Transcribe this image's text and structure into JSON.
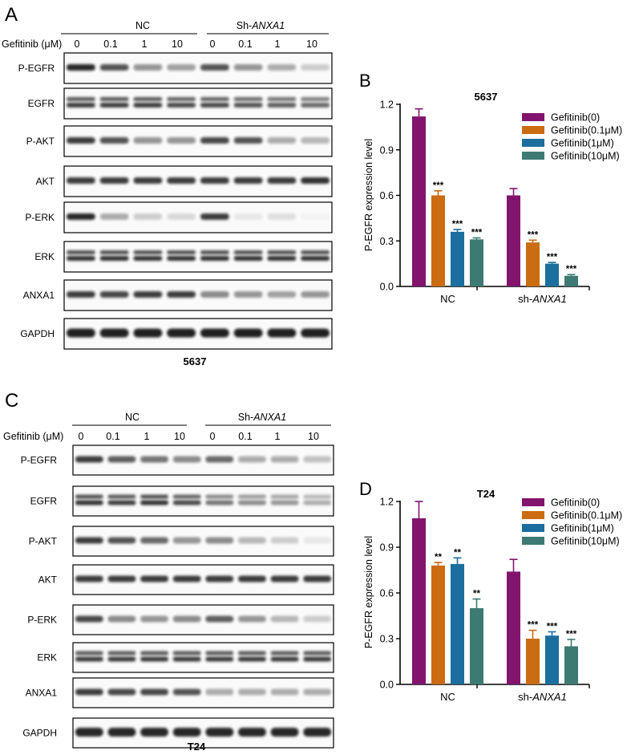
{
  "colors": {
    "gefitinib_0": "#82146e",
    "gefitinib_0_1": "#cb6b12",
    "gefitinib_1": "#1b6e9e",
    "gefitinib_10": "#3d7a73",
    "band": "#1a1a1a"
  },
  "blots": [
    {
      "panel_letter": "A",
      "group_labels": [
        "NC",
        "Sh-ANXA1"
      ],
      "group_label_plain": "NC",
      "group_label_prefix": "Sh-",
      "group_label_italic": "ANXA1",
      "concentration_label": "Gefitinib (μM)",
      "lanes": [
        "0",
        "0.1",
        "1",
        "10",
        "0",
        "0.1",
        "1",
        "10"
      ],
      "cell_line": "5637",
      "rows": [
        {
          "label": "P-EGFR",
          "intensity": [
            0.95,
            0.75,
            0.45,
            0.4,
            0.75,
            0.45,
            0.35,
            0.2
          ],
          "double": false
        },
        {
          "label": "EGFR",
          "intensity": [
            0.85,
            0.85,
            0.85,
            0.8,
            0.8,
            0.75,
            0.7,
            0.65
          ],
          "double": true
        },
        {
          "label": "P-AKT",
          "intensity": [
            0.85,
            0.75,
            0.45,
            0.45,
            0.8,
            0.75,
            0.35,
            0.3
          ],
          "double": false
        },
        {
          "label": "AKT",
          "intensity": [
            0.85,
            0.85,
            0.85,
            0.85,
            0.85,
            0.85,
            0.85,
            0.9
          ],
          "double": false
        },
        {
          "label": "P-ERK",
          "intensity": [
            0.95,
            0.35,
            0.2,
            0.15,
            0.85,
            0.08,
            0.12,
            0.03
          ],
          "double": false
        },
        {
          "label": "ERK",
          "intensity": [
            0.9,
            0.9,
            0.9,
            0.9,
            0.9,
            0.9,
            0.9,
            0.9
          ],
          "double": true
        },
        {
          "label": "ANXA1",
          "intensity": [
            0.85,
            0.8,
            0.85,
            0.85,
            0.5,
            0.45,
            0.4,
            0.45
          ],
          "double": false
        },
        {
          "label": "GAPDH",
          "intensity": [
            0.98,
            0.98,
            0.98,
            0.98,
            0.98,
            0.98,
            0.98,
            0.98
          ],
          "double": false
        }
      ]
    },
    {
      "panel_letter": "C",
      "group_labels": [
        "NC",
        "Sh-ANXA1"
      ],
      "group_label_plain": "NC",
      "group_label_prefix": "Sh-",
      "group_label_italic": "ANXA1",
      "concentration_label": "Gefitinib (μM)",
      "lanes": [
        "0",
        "0.1",
        "1",
        "10",
        "0",
        "0.1",
        "1",
        "10"
      ],
      "cell_line": "T24",
      "rows": [
        {
          "label": "P-EGFR",
          "intensity": [
            0.85,
            0.7,
            0.6,
            0.5,
            0.65,
            0.35,
            0.35,
            0.25
          ],
          "double": false
        },
        {
          "label": "EGFR",
          "intensity": [
            0.9,
            0.85,
            0.9,
            0.8,
            0.6,
            0.5,
            0.45,
            0.35
          ],
          "double": true
        },
        {
          "label": "P-AKT",
          "intensity": [
            0.85,
            0.75,
            0.65,
            0.45,
            0.5,
            0.3,
            0.2,
            0.08
          ],
          "double": false
        },
        {
          "label": "AKT",
          "intensity": [
            0.85,
            0.85,
            0.85,
            0.85,
            0.85,
            0.85,
            0.85,
            0.85
          ],
          "double": false
        },
        {
          "label": "P-ERK",
          "intensity": [
            0.8,
            0.5,
            0.45,
            0.5,
            0.7,
            0.45,
            0.3,
            0.2
          ],
          "double": false
        },
        {
          "label": "ERK",
          "intensity": [
            0.85,
            0.85,
            0.85,
            0.85,
            0.85,
            0.85,
            0.85,
            0.85
          ],
          "double": true
        },
        {
          "label": "ANXA1",
          "intensity": [
            0.85,
            0.8,
            0.8,
            0.75,
            0.35,
            0.35,
            0.35,
            0.35
          ],
          "double": false
        },
        {
          "label": "GAPDH",
          "intensity": [
            0.95,
            0.95,
            0.95,
            0.95,
            0.95,
            0.95,
            0.95,
            0.95
          ],
          "double": false
        }
      ]
    }
  ],
  "chart_data": [
    {
      "panel_letter": "B",
      "type": "bar",
      "title": "5637",
      "ylabel": "P-EGFR expression level",
      "ylim": [
        0,
        1.2
      ],
      "yticks": [
        "0.0",
        "0.3",
        "0.6",
        "0.9",
        "1.2"
      ],
      "category_prefix": "sh-",
      "category_italic": "ANXA1",
      "categories": [
        "NC",
        "sh-ANXA1"
      ],
      "legend_position": "top-right",
      "series": [
        {
          "name": "Gefitinib(0)",
          "values": [
            1.12,
            0.6
          ],
          "errors": [
            0.05,
            0.045
          ],
          "stars": [
            "",
            ""
          ]
        },
        {
          "name": "Gefitinib(0.1μM)",
          "values": [
            0.6,
            0.29
          ],
          "errors": [
            0.03,
            0.015
          ],
          "stars": [
            "***",
            "***"
          ]
        },
        {
          "name": "Gefitinib(1μM)",
          "values": [
            0.36,
            0.15
          ],
          "errors": [
            0.015,
            0.008
          ],
          "stars": [
            "***",
            "***"
          ]
        },
        {
          "name": "Gefitinib(10μM)",
          "values": [
            0.31,
            0.07
          ],
          "errors": [
            0.01,
            0.008
          ],
          "stars": [
            "***",
            "***"
          ]
        }
      ]
    },
    {
      "panel_letter": "D",
      "type": "bar",
      "title": "T24",
      "ylabel": "P-EGFR expression level",
      "ylim": [
        0,
        1.2
      ],
      "yticks": [
        "0.0",
        "0.3",
        "0.6",
        "0.9",
        "1.2"
      ],
      "category_prefix": "sh-",
      "category_italic": "ANXA1",
      "categories": [
        "NC",
        "sh-ANXA1"
      ],
      "legend_position": "top-right",
      "series": [
        {
          "name": "Gefitinib(0)",
          "values": [
            1.09,
            0.74
          ],
          "errors": [
            0.11,
            0.08
          ],
          "stars": [
            "",
            ""
          ]
        },
        {
          "name": "Gefitinib(0.1μM)",
          "values": [
            0.78,
            0.3
          ],
          "errors": [
            0.02,
            0.055
          ],
          "stars": [
            "**",
            "***"
          ]
        },
        {
          "name": "Gefitinib(1μM)",
          "values": [
            0.79,
            0.32
          ],
          "errors": [
            0.04,
            0.025
          ],
          "stars": [
            "**",
            "***"
          ]
        },
        {
          "name": "Gefitinib(10μM)",
          "values": [
            0.5,
            0.25
          ],
          "errors": [
            0.06,
            0.045
          ],
          "stars": [
            "**",
            "***"
          ]
        }
      ]
    }
  ]
}
